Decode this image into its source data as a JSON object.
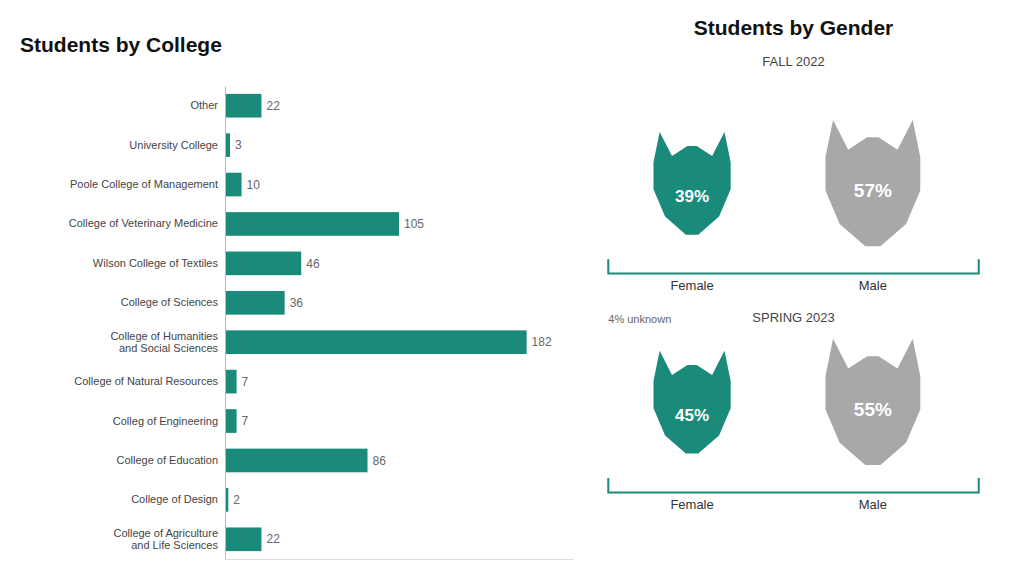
{
  "chart_data": [
    {
      "type": "bar",
      "title": "Students by College",
      "orientation": "horizontal",
      "categories": [
        "Other",
        "University College",
        "Poole College of Management",
        "College of Veterinary Medicine",
        "Wilson College of Textiles",
        "College of Sciences",
        "College of Humanities\nand Social Sciences",
        "College of Natural Resources",
        "Colleg of Engineering",
        "College of Education",
        "College of Design",
        "College of Agriculture\nand Life Sciences"
      ],
      "values": [
        22,
        3,
        10,
        105,
        46,
        36,
        182,
        7,
        7,
        86,
        2,
        22
      ],
      "color": "#1a8a7a",
      "xlim": [
        0,
        210
      ],
      "data_labels": true,
      "tick_labels": "y",
      "grid": false
    },
    {
      "type": "pictogram",
      "title": "Students by Gender",
      "categories": [
        "FALL 2022",
        "SPRING 2023"
      ],
      "series": [
        {
          "name": "Female",
          "color": "#1a8a7a",
          "values": [
            39,
            45
          ],
          "value_labels": [
            "39%",
            "45%"
          ]
        },
        {
          "name": "Male",
          "color": "#a8a8a8",
          "values": [
            57,
            55
          ],
          "value_labels": [
            "57%",
            "55%"
          ]
        }
      ],
      "data_labels": true,
      "tick_labels": false,
      "annotations": [
        "4% unknown"
      ]
    }
  ]
}
